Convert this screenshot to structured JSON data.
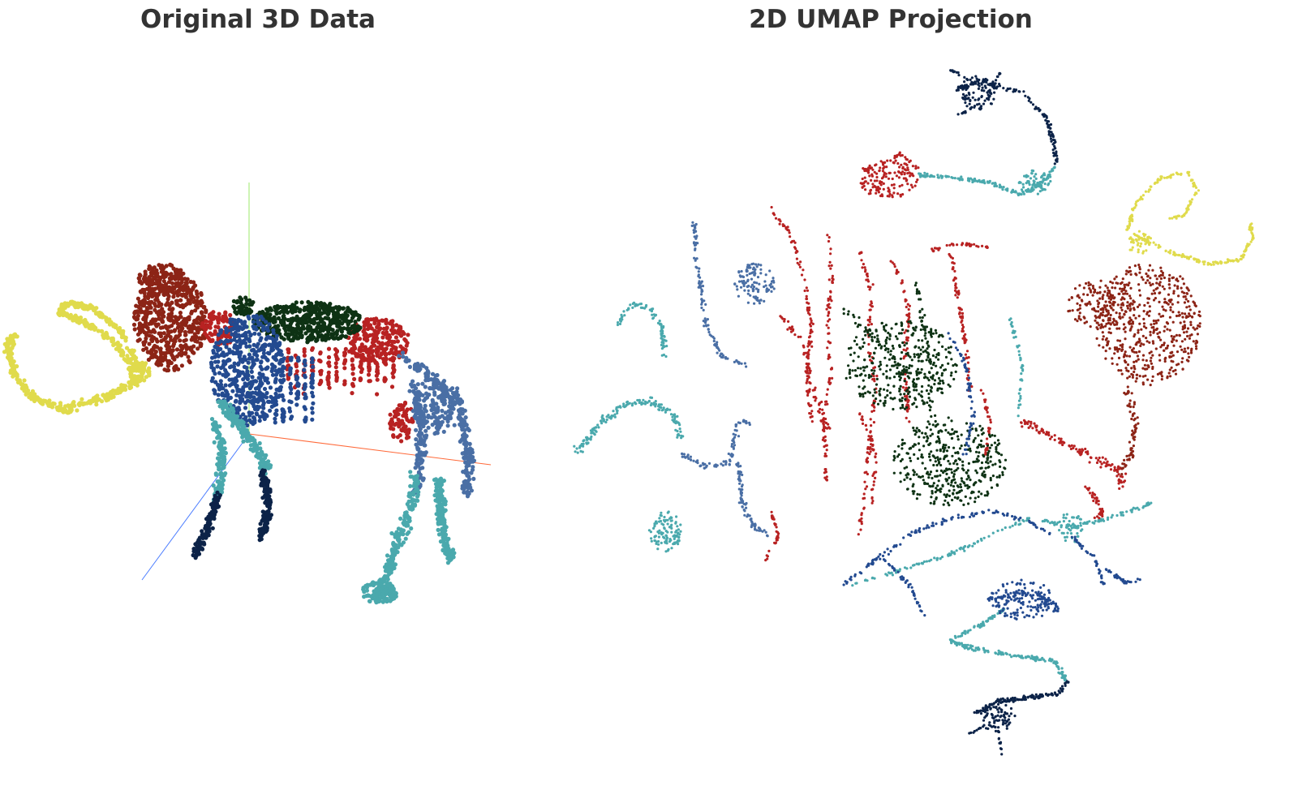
{
  "chart_data": [
    {
      "type": "scatter",
      "title": "Original 3D Data",
      "dimensions": 3,
      "axes_shown": true,
      "axis_colors": {
        "x": "#ff6a3a",
        "y": "#9ee86a",
        "z": "#4a7cff"
      },
      "grid": false,
      "legend": "none",
      "series": [
        {
          "part": "tusks",
          "color": "#e0db4c"
        },
        {
          "part": "head",
          "color": "#8c2416"
        },
        {
          "part": "back-torso",
          "color": "#b82222"
        },
        {
          "part": "spine-ridge",
          "color": "#0e3214"
        },
        {
          "part": "chest",
          "color": "#234a90"
        },
        {
          "part": "hind-body",
          "color": "#4a6fa5"
        },
        {
          "part": "legs",
          "color": "#4aa9ad"
        },
        {
          "part": "front-feet",
          "color": "#0c2348"
        }
      ]
    },
    {
      "type": "scatter",
      "title": "2D UMAP Projection",
      "dimensions": 2,
      "axes_shown": false,
      "grid": false,
      "legend": "none",
      "series": [
        {
          "part": "tusks",
          "color": "#e0db4c"
        },
        {
          "part": "head",
          "color": "#8c2416"
        },
        {
          "part": "back-torso",
          "color": "#b82222"
        },
        {
          "part": "spine-ridge",
          "color": "#0e3214"
        },
        {
          "part": "chest",
          "color": "#234a90"
        },
        {
          "part": "hind-body",
          "color": "#4a6fa5"
        },
        {
          "part": "legs",
          "color": "#4aa9ad"
        },
        {
          "part": "front-feet",
          "color": "#0c2348"
        }
      ]
    }
  ]
}
